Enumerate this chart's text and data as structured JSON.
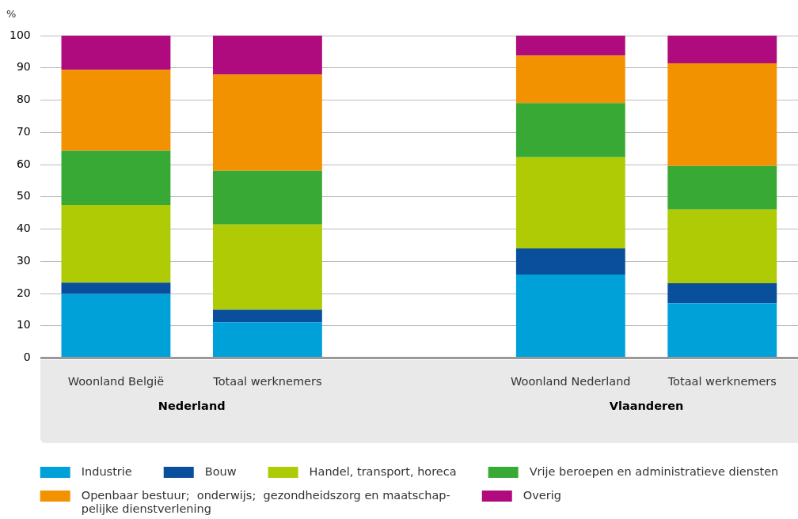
{
  "chart_data": {
    "type": "bar",
    "stacked": true,
    "ylabel": "%",
    "categories": [
      "Woonland België",
      "Totaal werknemers",
      null,
      "Woonland Nederland",
      "Totaal werknemers"
    ],
    "series": [
      {
        "name": "Industrie",
        "color": "#00a1d9",
        "values": [
          19.9,
          11.1,
          null,
          25.9,
          17.0
        ]
      },
      {
        "name": "Bouw",
        "color": "#0a4f9b",
        "values": [
          3.5,
          3.9,
          null,
          8.1,
          6.2
        ]
      },
      {
        "name": "Handel, transport, horeca",
        "color": "#afcb05",
        "values": [
          24.1,
          26.4,
          null,
          28.3,
          22.9
        ]
      },
      {
        "name": "Vrije beroepen en administratieve diensten",
        "color": "#39a935",
        "values": [
          16.8,
          16.7,
          null,
          16.8,
          13.5
        ]
      },
      {
        "name": "Openbaar bestuur;  onderwijs;  gezondheidszorg en maatschap-pelijke dienstverlening",
        "color": "#f39200",
        "values": [
          25.1,
          29.8,
          null,
          14.7,
          31.8
        ]
      },
      {
        "name": "Overig",
        "color": "#af0b7f",
        "values": [
          10.6,
          12.1,
          null,
          6.2,
          8.6
        ]
      }
    ],
    "ylim": [
      0,
      100
    ],
    "yticks": [
      0,
      10,
      20,
      30,
      40,
      50,
      60,
      70,
      80,
      90,
      100
    ],
    "grid": "y",
    "legend": "bottom",
    "annotations": [
      "Nederland",
      "Vlaanderen"
    ]
  }
}
